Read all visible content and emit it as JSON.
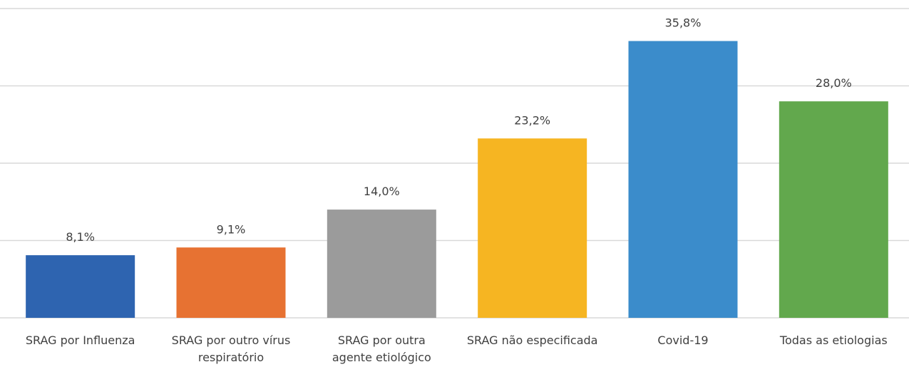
{
  "chart_data": {
    "type": "bar",
    "categories": [
      "SRAG por Influenza",
      "SRAG por outro vírus\nrespiratório",
      "SRAG por outra\nagente etiológico",
      "SRAG não especificada",
      "Covid-19",
      "Todas as etiologias"
    ],
    "values": [
      8.1,
      9.1,
      14.0,
      23.2,
      35.8,
      28.0
    ],
    "value_labels": [
      "8,1%",
      "9,1%",
      "14,0%",
      "23,2%",
      "35,8%",
      "28,0%"
    ],
    "colors": [
      "#2e64b0",
      "#e77232",
      "#9b9b9b",
      "#f6b522",
      "#3b8ccb",
      "#62a84d"
    ],
    "ylim": [
      0,
      40
    ],
    "yticks": [
      0,
      10,
      20,
      30,
      40
    ],
    "grid": true
  }
}
